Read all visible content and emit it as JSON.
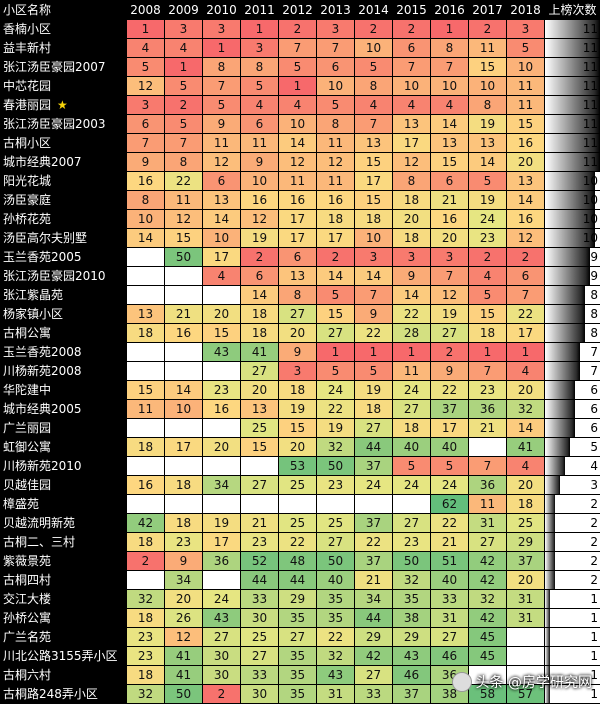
{
  "table": {
    "headers": [
      "小区名称",
      "2008",
      "2009",
      "2010",
      "2011",
      "2012",
      "2013",
      "2014",
      "2015",
      "2016",
      "2017",
      "2018",
      "上榜次数"
    ],
    "rows": [
      {
        "name": "香楠小区",
        "ranks": [
          1,
          3,
          3,
          1,
          2,
          3,
          2,
          2,
          1,
          2,
          3
        ],
        "count": 11
      },
      {
        "name": "益丰新村",
        "ranks": [
          4,
          4,
          1,
          3,
          7,
          7,
          10,
          6,
          8,
          11,
          5
        ],
        "count": 11
      },
      {
        "name": "张江汤臣豪园2007",
        "ranks": [
          5,
          1,
          8,
          8,
          5,
          6,
          5,
          7,
          7,
          15,
          10
        ],
        "count": 11
      },
      {
        "name": "中芯花园",
        "ranks": [
          12,
          5,
          7,
          5,
          1,
          10,
          8,
          10,
          10,
          10,
          11
        ],
        "count": 11
      },
      {
        "name": "春港丽园",
        "star": "★",
        "ranks": [
          3,
          2,
          5,
          4,
          4,
          5,
          4,
          4,
          4,
          8,
          11
        ],
        "count": 11
      },
      {
        "name": "张江汤臣豪园2003",
        "ranks": [
          6,
          5,
          9,
          6,
          10,
          8,
          7,
          13,
          14,
          19,
          15
        ],
        "count": 11
      },
      {
        "name": "古桐小区",
        "ranks": [
          7,
          7,
          11,
          11,
          14,
          11,
          13,
          17,
          13,
          13,
          16
        ],
        "count": 11
      },
      {
        "name": "城市经典2007",
        "ranks": [
          9,
          8,
          12,
          9,
          12,
          12,
          15,
          12,
          15,
          14,
          20
        ],
        "count": 11
      },
      {
        "name": "阳光花城",
        "ranks": [
          16,
          22,
          6,
          10,
          11,
          11,
          17,
          8,
          6,
          5,
          13
        ],
        "count": 10
      },
      {
        "name": "汤臣豪庭",
        "ranks": [
          8,
          11,
          13,
          16,
          16,
          16,
          15,
          18,
          21,
          19,
          14
        ],
        "count": 10
      },
      {
        "name": "孙桥花苑",
        "ranks": [
          10,
          12,
          14,
          12,
          17,
          18,
          18,
          20,
          16,
          24,
          16
        ],
        "count": 10
      },
      {
        "name": "汤臣高尔夫别墅",
        "ranks": [
          14,
          15,
          10,
          19,
          17,
          17,
          10,
          18,
          20,
          23,
          12
        ],
        "count": 10
      },
      {
        "name": "玉兰香苑2005",
        "ranks": [
          null,
          50,
          17,
          2,
          6,
          2,
          3,
          3,
          3,
          2,
          2
        ],
        "count": 9
      },
      {
        "name": "张江汤臣豪园2010",
        "ranks": [
          null,
          null,
          4,
          6,
          13,
          14,
          14,
          9,
          7,
          4,
          6
        ],
        "count": 9
      },
      {
        "name": "张江紫晶苑",
        "ranks": [
          null,
          null,
          null,
          14,
          8,
          5,
          7,
          14,
          12,
          5,
          7
        ],
        "count": 8
      },
      {
        "name": "杨家镇小区",
        "ranks": [
          13,
          21,
          20,
          18,
          27,
          15,
          9,
          22,
          19,
          15,
          22
        ],
        "count": 8
      },
      {
        "name": "古桐公寓",
        "ranks": [
          18,
          16,
          15,
          18,
          20,
          27,
          22,
          28,
          27,
          18,
          17
        ],
        "count": 8
      },
      {
        "name": "玉兰香苑2008",
        "ranks": [
          null,
          null,
          43,
          41,
          9,
          1,
          1,
          1,
          2,
          1,
          1
        ],
        "count": 7
      },
      {
        "name": "川杨新苑2008",
        "ranks": [
          null,
          null,
          null,
          27,
          3,
          5,
          5,
          11,
          9,
          7,
          4
        ],
        "count": 7
      },
      {
        "name": "华陀建中",
        "ranks": [
          15,
          14,
          23,
          20,
          18,
          24,
          19,
          24,
          22,
          23,
          20
        ],
        "count": 6
      },
      {
        "name": "城市经典2005",
        "ranks": [
          11,
          10,
          16,
          13,
          19,
          22,
          18,
          27,
          37,
          36,
          32
        ],
        "count": 6
      },
      {
        "name": "广兰丽园",
        "ranks": [
          null,
          null,
          null,
          25,
          15,
          19,
          27,
          18,
          17,
          21,
          14
        ],
        "count": 6
      },
      {
        "name": "虹御公寓",
        "ranks": [
          18,
          17,
          20,
          15,
          20,
          32,
          44,
          40,
          40,
          null,
          41
        ],
        "count": 5
      },
      {
        "name": "川杨新苑2010",
        "ranks": [
          null,
          null,
          null,
          null,
          53,
          50,
          37,
          5,
          5,
          7,
          4
        ],
        "count": 4
      },
      {
        "name": "贝越佳园",
        "ranks": [
          16,
          18,
          34,
          27,
          25,
          23,
          24,
          24,
          24,
          36,
          20
        ],
        "count": 3
      },
      {
        "name": "樟盛苑",
        "ranks": [
          null,
          null,
          null,
          null,
          null,
          null,
          null,
          null,
          62,
          11,
          18
        ],
        "count": 2
      },
      {
        "name": "贝越流明新苑",
        "ranks": [
          42,
          18,
          19,
          21,
          25,
          25,
          37,
          27,
          22,
          31,
          25
        ],
        "count": 2
      },
      {
        "name": "古桐二、三村",
        "ranks": [
          18,
          23,
          17,
          23,
          22,
          27,
          22,
          23,
          21,
          27,
          29
        ],
        "count": 2
      },
      {
        "name": "紫薇景苑",
        "ranks": [
          2,
          9,
          36,
          52,
          48,
          50,
          37,
          50,
          51,
          42,
          37
        ],
        "count": 2
      },
      {
        "name": "古桐四村",
        "ranks": [
          null,
          34,
          null,
          44,
          44,
          40,
          21,
          32,
          40,
          42,
          20
        ],
        "count": 2
      },
      {
        "name": "交江大楼",
        "ranks": [
          32,
          20,
          24,
          33,
          29,
          35,
          34,
          35,
          33,
          32,
          31
        ],
        "count": 1
      },
      {
        "name": "孙桥公寓",
        "ranks": [
          18,
          26,
          43,
          30,
          35,
          35,
          44,
          38,
          31,
          42,
          31
        ],
        "count": 1
      },
      {
        "name": "广兰名苑",
        "ranks": [
          23,
          12,
          27,
          25,
          27,
          22,
          29,
          29,
          27,
          45,
          null
        ],
        "count": 1
      },
      {
        "name": "川北公路3155弄小区",
        "ranks": [
          23,
          41,
          30,
          27,
          35,
          32,
          42,
          43,
          46,
          45,
          null
        ],
        "count": 1
      },
      {
        "name": "古桐六村",
        "ranks": [
          18,
          41,
          30,
          33,
          35,
          43,
          27,
          46,
          36,
          null,
          null
        ],
        "count": 1
      },
      {
        "name": "古桐路248弄小区",
        "ranks": [
          32,
          50,
          2,
          30,
          35,
          31,
          33,
          37,
          38,
          58,
          57
        ],
        "count": 1
      }
    ]
  },
  "watermark": {
    "text": "头条 @房学研究网"
  }
}
